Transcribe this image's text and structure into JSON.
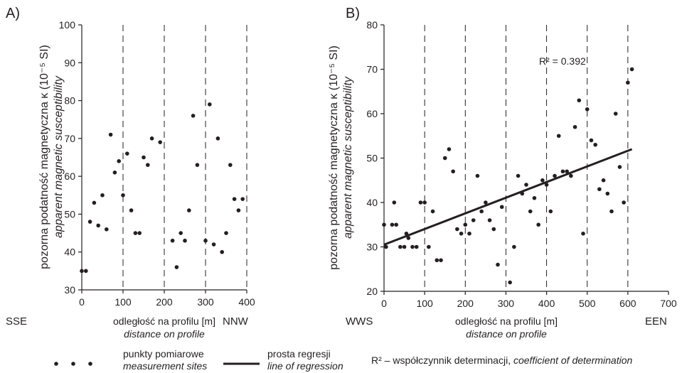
{
  "chart_data": [
    {
      "type": "scatter",
      "panel_label": "A)",
      "ylabel": "pozorna podatność magnetyczna κ (10⁻⁵ SI)",
      "ylabel_en": "apparent magnetic susceptibility",
      "xlabel": "odległość na profilu [m]",
      "xlabel_en": "distance on profile",
      "dir_left": "SSE",
      "dir_right": "NNW",
      "xlim": [
        0,
        400
      ],
      "ylim": [
        30,
        100
      ],
      "xticks": [
        0,
        100,
        200,
        300,
        400
      ],
      "yticks": [
        30,
        40,
        50,
        60,
        70,
        80,
        90,
        100
      ],
      "vlines": [
        100,
        200,
        300,
        400
      ],
      "points": [
        [
          0,
          35
        ],
        [
          10,
          35
        ],
        [
          20,
          48
        ],
        [
          30,
          53
        ],
        [
          40,
          47
        ],
        [
          50,
          55
        ],
        [
          60,
          46
        ],
        [
          70,
          71
        ],
        [
          80,
          61
        ],
        [
          90,
          64
        ],
        [
          100,
          55
        ],
        [
          110,
          66
        ],
        [
          120,
          51
        ],
        [
          130,
          45
        ],
        [
          140,
          45
        ],
        [
          150,
          65
        ],
        [
          160,
          63
        ],
        [
          170,
          70
        ],
        [
          190,
          69
        ],
        [
          220,
          43
        ],
        [
          230,
          36
        ],
        [
          240,
          45
        ],
        [
          250,
          43
        ],
        [
          260,
          51
        ],
        [
          270,
          76
        ],
        [
          280,
          63
        ],
        [
          300,
          43
        ],
        [
          310,
          79
        ],
        [
          320,
          42
        ],
        [
          330,
          70
        ],
        [
          340,
          40
        ],
        [
          350,
          45
        ],
        [
          360,
          63
        ],
        [
          370,
          54
        ],
        [
          380,
          51
        ],
        [
          390,
          54
        ]
      ]
    },
    {
      "type": "scatter",
      "panel_label": "B)",
      "ylabel": "pozorna podatność magnetyczna κ (10⁻⁵ SI)",
      "ylabel_en": "apparent magnetic susceptibility",
      "xlabel": "odległość na profilu [m]",
      "xlabel_en": "distance on profile",
      "dir_left": "WWS",
      "dir_right": "EEN",
      "xlim": [
        0,
        700
      ],
      "ylim": [
        20,
        80
      ],
      "xticks": [
        0,
        100,
        200,
        300,
        400,
        500,
        600,
        700
      ],
      "yticks": [
        20,
        30,
        40,
        50,
        60,
        70,
        80
      ],
      "vlines": [
        100,
        200,
        300,
        400,
        500,
        600
      ],
      "annotation": "R² = 0.392",
      "regression_line": [
        [
          0,
          30.5
        ],
        [
          610,
          52
        ]
      ],
      "points": [
        [
          0,
          35
        ],
        [
          5,
          30
        ],
        [
          20,
          35
        ],
        [
          25,
          40
        ],
        [
          30,
          35
        ],
        [
          40,
          30
        ],
        [
          50,
          30
        ],
        [
          55,
          33
        ],
        [
          60,
          32
        ],
        [
          70,
          30
        ],
        [
          80,
          30
        ],
        [
          90,
          40
        ],
        [
          100,
          40
        ],
        [
          110,
          30
        ],
        [
          120,
          38
        ],
        [
          130,
          27
        ],
        [
          140,
          27
        ],
        [
          150,
          50
        ],
        [
          160,
          52
        ],
        [
          170,
          47
        ],
        [
          180,
          34
        ],
        [
          190,
          33
        ],
        [
          200,
          35
        ],
        [
          210,
          33
        ],
        [
          220,
          36
        ],
        [
          230,
          46
        ],
        [
          240,
          38
        ],
        [
          250,
          40
        ],
        [
          260,
          36
        ],
        [
          270,
          34
        ],
        [
          280,
          26
        ],
        [
          290,
          39
        ],
        [
          310,
          22
        ],
        [
          320,
          30
        ],
        [
          330,
          46
        ],
        [
          340,
          42
        ],
        [
          350,
          44
        ],
        [
          360,
          38
        ],
        [
          370,
          41
        ],
        [
          380,
          35
        ],
        [
          390,
          45
        ],
        [
          400,
          44
        ],
        [
          410,
          38
        ],
        [
          420,
          46
        ],
        [
          430,
          55
        ],
        [
          440,
          47
        ],
        [
          450,
          47
        ],
        [
          460,
          46
        ],
        [
          470,
          57
        ],
        [
          480,
          63
        ],
        [
          490,
          33
        ],
        [
          500,
          61
        ],
        [
          510,
          54
        ],
        [
          520,
          53
        ],
        [
          530,
          43
        ],
        [
          540,
          45
        ],
        [
          550,
          42
        ],
        [
          560,
          38
        ],
        [
          570,
          60
        ],
        [
          580,
          48
        ],
        [
          590,
          40
        ],
        [
          600,
          67
        ],
        [
          610,
          70
        ]
      ]
    }
  ],
  "legend": {
    "points_label": "punkty pomiarowe",
    "points_label_en": "measurement sites",
    "line_label": "prosta regresji",
    "line_label_en": "line of regression",
    "r2_note": "R² – współczynnik determinacji,",
    "r2_note_en": "coefficient of determination"
  }
}
